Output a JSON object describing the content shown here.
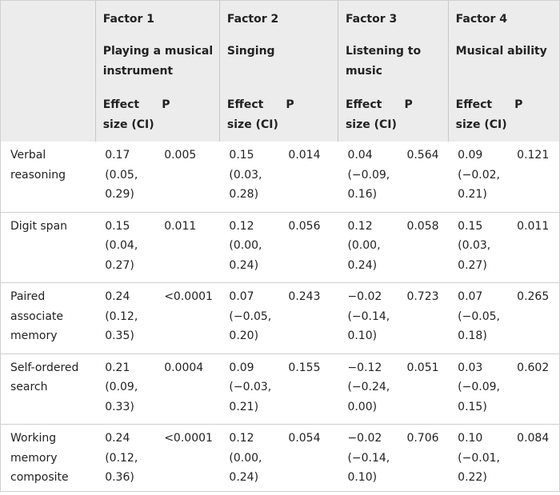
{
  "factors": [
    {
      "title": "Factor 1",
      "subtitle": "Playing a musical instrument"
    },
    {
      "title": "Factor 2",
      "subtitle": "Singing"
    },
    {
      "title": "Factor 3",
      "subtitle": "Listening to music"
    },
    {
      "title": "Factor 4",
      "subtitle": "Musical ability"
    }
  ],
  "subheaders": {
    "effect": "Effect size (CI)",
    "p": "P"
  },
  "rows": [
    {
      "label": "Verbal reasoning",
      "cells": [
        "0.17 (0.05, 0.29)",
        "0.005",
        "0.15 (0.03, 0.28)",
        "0.014",
        "0.04 (−0.09, 0.16)",
        "0.564",
        "0.09 (−0.02, 0.21)",
        "0.121"
      ]
    },
    {
      "label": "Digit span",
      "cells": [
        "0.15 (0.04, 0.27)",
        "0.011",
        "0.12 (0.00, 0.24)",
        "0.056",
        "0.12 (0.00, 0.24)",
        "0.058",
        "0.15 (0.03, 0.27)",
        "0.011"
      ]
    },
    {
      "label": "Paired associate memory",
      "cells": [
        "0.24 (0.12, 0.35)",
        "<0.0001",
        "0.07 (−0.05, 0.20)",
        "0.243",
        "−0.02 (−0.14, 0.10)",
        "0.723",
        "0.07 (−0.05, 0.18)",
        "0.265"
      ]
    },
    {
      "label": "Self-ordered search",
      "cells": [
        "0.21 (0.09, 0.33)",
        "0.0004",
        "0.09 (−0.03, 0.21)",
        "0.155",
        "−0.12 (−0.24, 0.00)",
        "0.051",
        "0.03 (−0.09, 0.15)",
        "0.602"
      ]
    },
    {
      "label": "Working memory composite",
      "cells": [
        "0.24 (0.12, 0.36)",
        "<0.0001",
        "0.12 (0.00, 0.24)",
        "0.054",
        "−0.02 (−0.14, 0.10)",
        "0.706",
        "0.10 (−0.01, 0.22)",
        "0.084"
      ]
    }
  ]
}
